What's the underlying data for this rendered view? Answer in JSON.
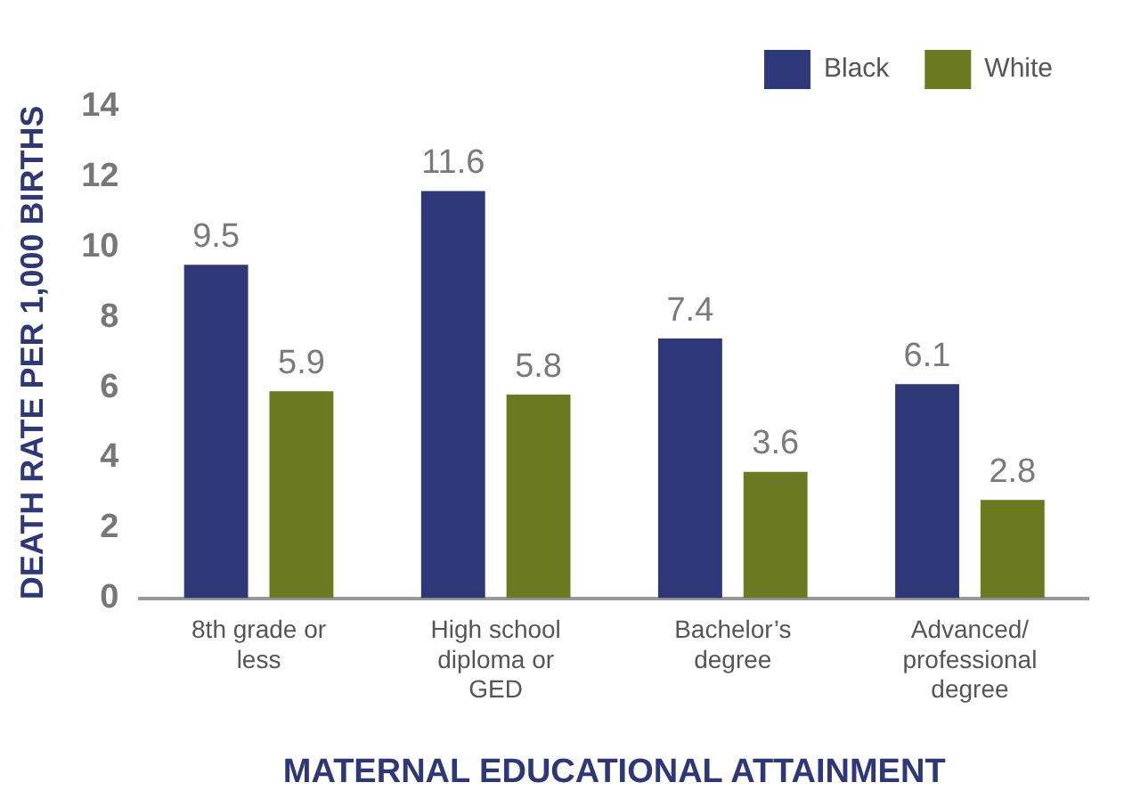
{
  "chart_data": {
    "type": "bar",
    "xlabel": "MATERNAL EDUCATIONAL ATTAINMENT",
    "ylabel": "DEATH RATE PER 1,000 BIRTHS",
    "categories": [
      "8th grade or less",
      "High school diploma or GED",
      "Bachelor’s degree",
      "Advanced/ professional degree"
    ],
    "series": [
      {
        "name": "Black",
        "color": "#2e3777",
        "values": [
          9.5,
          11.6,
          7.4,
          6.1
        ]
      },
      {
        "name": "White",
        "color": "#6b7a20",
        "values": [
          5.9,
          5.8,
          3.6,
          2.8
        ]
      }
    ],
    "ylim": [
      0,
      14
    ],
    "yticks": [
      0,
      2,
      4,
      6,
      8,
      10,
      12,
      14
    ],
    "grid": false,
    "legend": "top right",
    "data_labels": true
  }
}
